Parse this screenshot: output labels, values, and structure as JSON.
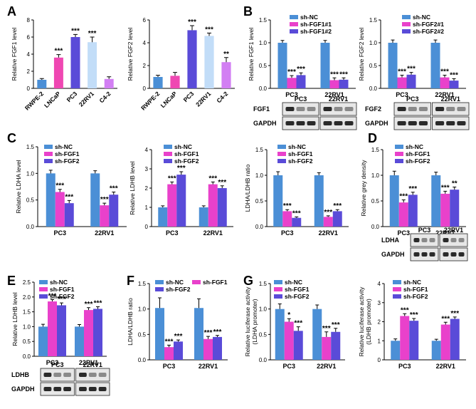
{
  "figure": {
    "panel_letters": [
      "A",
      "B",
      "C",
      "D",
      "E",
      "F",
      "G"
    ],
    "colors": {
      "gray": "#7f7f7f",
      "blue": "#4b8fd6",
      "pink": "#ef47b2",
      "purple": "#5a4bd8",
      "lightblue": "#c2ddf8",
      "violet": "#d27ff3",
      "magenta": "#e941cb",
      "blue2": "#3a73e0",
      "sig": "#000000"
    }
  },
  "chart_data": [
    {
      "id": "A1",
      "letter": "A",
      "type": "bar",
      "ylabel": "Relative FGF1 level",
      "ylim": [
        0,
        8
      ],
      "yticks": [
        0,
        2,
        4,
        6,
        8
      ],
      "categories": [
        "RWPE-2",
        "LNCaP",
        "PC3",
        "22RV1",
        "C4-2"
      ],
      "series": [
        {
          "name": "",
          "values": [
            1.0,
            3.6,
            6.0,
            5.4,
            1.1
          ],
          "errors": [
            0.15,
            0.35,
            0.3,
            0.6,
            0.25
          ]
        }
      ],
      "bar_colors": [
        "#4b8fd6",
        "#ef47b2",
        "#5a4bd8",
        "#c2ddf8",
        "#d27ff3"
      ],
      "sig": [
        "",
        "***",
        "***",
        "***",
        ""
      ]
    },
    {
      "id": "A2",
      "letter": "",
      "type": "bar",
      "ylabel": "Relative FGF2 level",
      "ylim": [
        0,
        6
      ],
      "yticks": [
        0,
        2,
        4,
        6
      ],
      "categories": [
        "RWPE-2",
        "LNCaP",
        "PC3",
        "22RV1",
        "C4-2"
      ],
      "series": [
        {
          "name": "",
          "values": [
            1.0,
            1.1,
            5.1,
            4.6,
            2.3
          ],
          "errors": [
            0.15,
            0.3,
            0.4,
            0.25,
            0.4
          ]
        }
      ],
      "bar_colors": [
        "#4b8fd6",
        "#ef47b2",
        "#5a4bd8",
        "#c2ddf8",
        "#d27ff3"
      ],
      "sig": [
        "",
        "",
        "***",
        "***",
        "**"
      ]
    },
    {
      "id": "B1",
      "letter": "B",
      "type": "bar",
      "ylabel": "Relative FGF1 level",
      "ylim": [
        0,
        1.5
      ],
      "yticks": [
        0.0,
        0.5,
        1.0,
        1.5
      ],
      "categories": [
        "PC3",
        "22RV1"
      ],
      "series": [
        {
          "name": "sh-NC",
          "values": [
            1.0,
            1.0
          ],
          "errors": [
            0.05,
            0.05
          ]
        },
        {
          "name": "sh-FGF1#1",
          "values": [
            0.23,
            0.18
          ],
          "errors": [
            0.05,
            0.05
          ]
        },
        {
          "name": "sh-FGF1#2",
          "values": [
            0.29,
            0.19
          ],
          "errors": [
            0.05,
            0.04
          ]
        }
      ],
      "series_colors": [
        "#4b8fd6",
        "#e941cb",
        "#5a4bd8"
      ],
      "sig": [
        [
          "",
          "***",
          "***"
        ],
        [
          "",
          "***",
          "***"
        ]
      ]
    },
    {
      "id": "B2",
      "letter": "",
      "type": "bar",
      "ylabel": "Relative FGF2 level",
      "ylim": [
        0,
        1.5
      ],
      "yticks": [
        0.0,
        0.5,
        1.0,
        1.5
      ],
      "categories": [
        "PC3",
        "22RV1"
      ],
      "series": [
        {
          "name": "sh-NC",
          "values": [
            1.0,
            1.0
          ],
          "errors": [
            0.06,
            0.06
          ]
        },
        {
          "name": "sh-FGF2#1",
          "values": [
            0.24,
            0.24
          ],
          "errors": [
            0.05,
            0.05
          ]
        },
        {
          "name": "sh-FGF2#2",
          "values": [
            0.3,
            0.17
          ],
          "errors": [
            0.05,
            0.04
          ]
        }
      ],
      "series_colors": [
        "#4b8fd6",
        "#e941cb",
        "#5a4bd8"
      ],
      "sig": [
        [
          "",
          "***",
          "***"
        ],
        [
          "",
          "***",
          "***"
        ]
      ]
    },
    {
      "id": "C1",
      "letter": "C",
      "type": "bar",
      "ylabel": "Relative LDHA level",
      "ylim": [
        0,
        1.5
      ],
      "yticks": [
        0.0,
        0.5,
        1.0,
        1.5
      ],
      "categories": [
        "PC3",
        "22RV1"
      ],
      "series": [
        {
          "name": "sh-NC",
          "values": [
            1.0,
            1.0
          ],
          "errors": [
            0.06,
            0.05
          ]
        },
        {
          "name": "sh-FGF1",
          "values": [
            0.65,
            0.4
          ],
          "errors": [
            0.05,
            0.04
          ]
        },
        {
          "name": "sh-FGF2",
          "values": [
            0.44,
            0.6
          ],
          "errors": [
            0.05,
            0.05
          ]
        }
      ],
      "series_colors": [
        "#4b8fd6",
        "#e941cb",
        "#5a4bd8"
      ],
      "sig": [
        [
          "",
          "***",
          "***"
        ],
        [
          "",
          "***",
          "***"
        ]
      ]
    },
    {
      "id": "C2",
      "letter": "",
      "type": "bar",
      "ylabel": "Relative LDHB level",
      "ylim": [
        0,
        4
      ],
      "yticks": [
        0,
        1,
        2,
        3,
        4
      ],
      "categories": [
        "PC3",
        "22RV1"
      ],
      "series": [
        {
          "name": "sh-NC",
          "values": [
            1.0,
            1.0
          ],
          "errors": [
            0.08,
            0.08
          ]
        },
        {
          "name": "sh-FGF1",
          "values": [
            2.2,
            2.2
          ],
          "errors": [
            0.12,
            0.12
          ]
        },
        {
          "name": "sh-FGF2",
          "values": [
            2.7,
            2.0
          ],
          "errors": [
            0.15,
            0.12
          ]
        }
      ],
      "series_colors": [
        "#4b8fd6",
        "#e941cb",
        "#5a4bd8"
      ],
      "sig": [
        [
          "",
          "***",
          "***"
        ],
        [
          "",
          "***",
          "***"
        ]
      ]
    },
    {
      "id": "C3",
      "letter": "",
      "type": "bar",
      "ylabel": "LDHA/LDHB ratio",
      "ylim": [
        0,
        1.5
      ],
      "yticks": [
        0.0,
        0.5,
        1.0,
        1.5
      ],
      "categories": [
        "PC3",
        "22RV1"
      ],
      "series": [
        {
          "name": "sh-NC",
          "values": [
            1.0,
            1.0
          ],
          "errors": [
            0.07,
            0.05
          ]
        },
        {
          "name": "sh-FGF1",
          "values": [
            0.3,
            0.19
          ],
          "errors": [
            0.03,
            0.02
          ]
        },
        {
          "name": "sh-FGF2",
          "values": [
            0.17,
            0.3
          ],
          "errors": [
            0.02,
            0.03
          ]
        }
      ],
      "series_colors": [
        "#4b8fd6",
        "#e941cb",
        "#5a4bd8"
      ],
      "sig": [
        [
          "",
          "***",
          "***"
        ],
        [
          "",
          "***",
          "***"
        ]
      ]
    },
    {
      "id": "D1",
      "letter": "D",
      "type": "bar",
      "ylabel": "Relative grey density",
      "ylim": [
        0,
        1.5
      ],
      "yticks": [
        0.0,
        0.5,
        1.0,
        1.5
      ],
      "categories": [
        "PC3",
        "22RV1"
      ],
      "series": [
        {
          "name": "sh-NC",
          "values": [
            1.0,
            1.0
          ],
          "errors": [
            0.08,
            0.06
          ]
        },
        {
          "name": "sh-FGF1",
          "values": [
            0.47,
            0.64
          ],
          "errors": [
            0.05,
            0.05
          ]
        },
        {
          "name": "sh-FGF2",
          "values": [
            0.62,
            0.72
          ],
          "errors": [
            0.05,
            0.05
          ]
        }
      ],
      "series_colors": [
        "#4b8fd6",
        "#e941cb",
        "#5a4bd8"
      ],
      "sig": [
        [
          "",
          "***",
          "***"
        ],
        [
          "",
          "***",
          "**"
        ]
      ]
    },
    {
      "id": "E1",
      "letter": "E",
      "type": "bar",
      "ylabel": "Relative LDHB level",
      "ylim": [
        0,
        2.5
      ],
      "yticks": [
        0.0,
        0.5,
        1.0,
        1.5,
        2.0,
        2.5
      ],
      "categories": [
        "PC3",
        "22RV1"
      ],
      "series": [
        {
          "name": "sh-NC",
          "values": [
            1.0,
            1.0
          ],
          "errors": [
            0.08,
            0.07
          ]
        },
        {
          "name": "sh-FGF1",
          "values": [
            1.85,
            1.56
          ],
          "errors": [
            0.06,
            0.08
          ]
        },
        {
          "name": "sh-FGF2",
          "values": [
            1.72,
            1.6
          ],
          "errors": [
            0.08,
            0.07
          ]
        }
      ],
      "series_colors": [
        "#4b8fd6",
        "#e941cb",
        "#5a4bd8"
      ],
      "sig": [
        [
          "",
          "***",
          "***"
        ],
        [
          "",
          "***",
          "***"
        ]
      ]
    },
    {
      "id": "F1",
      "letter": "F",
      "type": "bar",
      "ylabel": "LDHA/LDHB ratio",
      "ylim": [
        0,
        1.5
      ],
      "yticks": [
        0.0,
        0.5,
        1.0,
        1.5
      ],
      "categories": [
        "PC3",
        "22RV1"
      ],
      "series": [
        {
          "name": "sh-NC",
          "values": [
            1.02,
            1.02
          ],
          "errors": [
            0.2,
            0.18
          ]
        },
        {
          "name": "sh-FGF1",
          "values": [
            0.25,
            0.41
          ],
          "errors": [
            0.04,
            0.05
          ]
        },
        {
          "name": "sh-FGF2",
          "values": [
            0.36,
            0.45
          ],
          "errors": [
            0.03,
            0.03
          ]
        }
      ],
      "series_colors": [
        "#4b8fd6",
        "#e941cb",
        "#5a4bd8"
      ],
      "sig": [
        [
          "",
          "***",
          "***"
        ],
        [
          "",
          "***",
          "***"
        ]
      ]
    },
    {
      "id": "G1",
      "letter": "G",
      "type": "bar",
      "ylabel": "Relative luciferase activity\n(LDHA promoter)",
      "ylim": [
        0,
        1.5
      ],
      "yticks": [
        0.0,
        0.5,
        1.0,
        1.5
      ],
      "categories": [
        "PC3",
        "22RV1"
      ],
      "series": [
        {
          "name": "sh-NC",
          "values": [
            1.0,
            1.0
          ],
          "errors": [
            0.1,
            0.08
          ]
        },
        {
          "name": "sh-FGF1",
          "values": [
            0.75,
            0.45
          ],
          "errors": [
            0.06,
            0.1
          ]
        },
        {
          "name": "sh-FGF2",
          "values": [
            0.57,
            0.55
          ],
          "errors": [
            0.08,
            0.07
          ]
        }
      ],
      "series_colors": [
        "#4b8fd6",
        "#e941cb",
        "#5a4bd8"
      ],
      "sig": [
        [
          "",
          "*",
          "***"
        ],
        [
          "",
          "***",
          "***"
        ]
      ]
    },
    {
      "id": "G2",
      "letter": "",
      "type": "bar",
      "ylabel": "Relative luciferase activity\n(LDHB promoter)",
      "ylim": [
        0,
        4
      ],
      "yticks": [
        0,
        1,
        2,
        3,
        4
      ],
      "categories": [
        "PC3",
        "22RV1"
      ],
      "series": [
        {
          "name": "sh-NC",
          "values": [
            1.0,
            1.0
          ],
          "errors": [
            0.1,
            0.08
          ]
        },
        {
          "name": "sh-FGF1",
          "values": [
            2.3,
            1.85
          ],
          "errors": [
            0.12,
            0.12
          ]
        },
        {
          "name": "sh-FGF2",
          "values": [
            2.05,
            2.15
          ],
          "errors": [
            0.12,
            0.1
          ]
        }
      ],
      "series_colors": [
        "#4b8fd6",
        "#e941cb",
        "#5a4bd8"
      ],
      "sig": [
        [
          "",
          "***",
          "***"
        ],
        [
          "",
          "***",
          "***"
        ]
      ]
    }
  ],
  "blots": [
    {
      "id": "B1-blot",
      "rows": [
        "FGF1",
        "GAPDH"
      ],
      "groups": [
        "PC3",
        "22RV1"
      ]
    },
    {
      "id": "B2-blot",
      "rows": [
        "FGF2",
        "GAPDH"
      ],
      "groups": [
        "PC3",
        "22RV1"
      ]
    },
    {
      "id": "D1-blot",
      "rows": [
        "LDHA",
        "GAPDH"
      ],
      "groups": [
        "PC3",
        "22RV1"
      ]
    },
    {
      "id": "E1-blot",
      "rows": [
        "LDHB",
        "GAPDH"
      ],
      "groups": [
        "PC3",
        "22RV1"
      ]
    }
  ]
}
